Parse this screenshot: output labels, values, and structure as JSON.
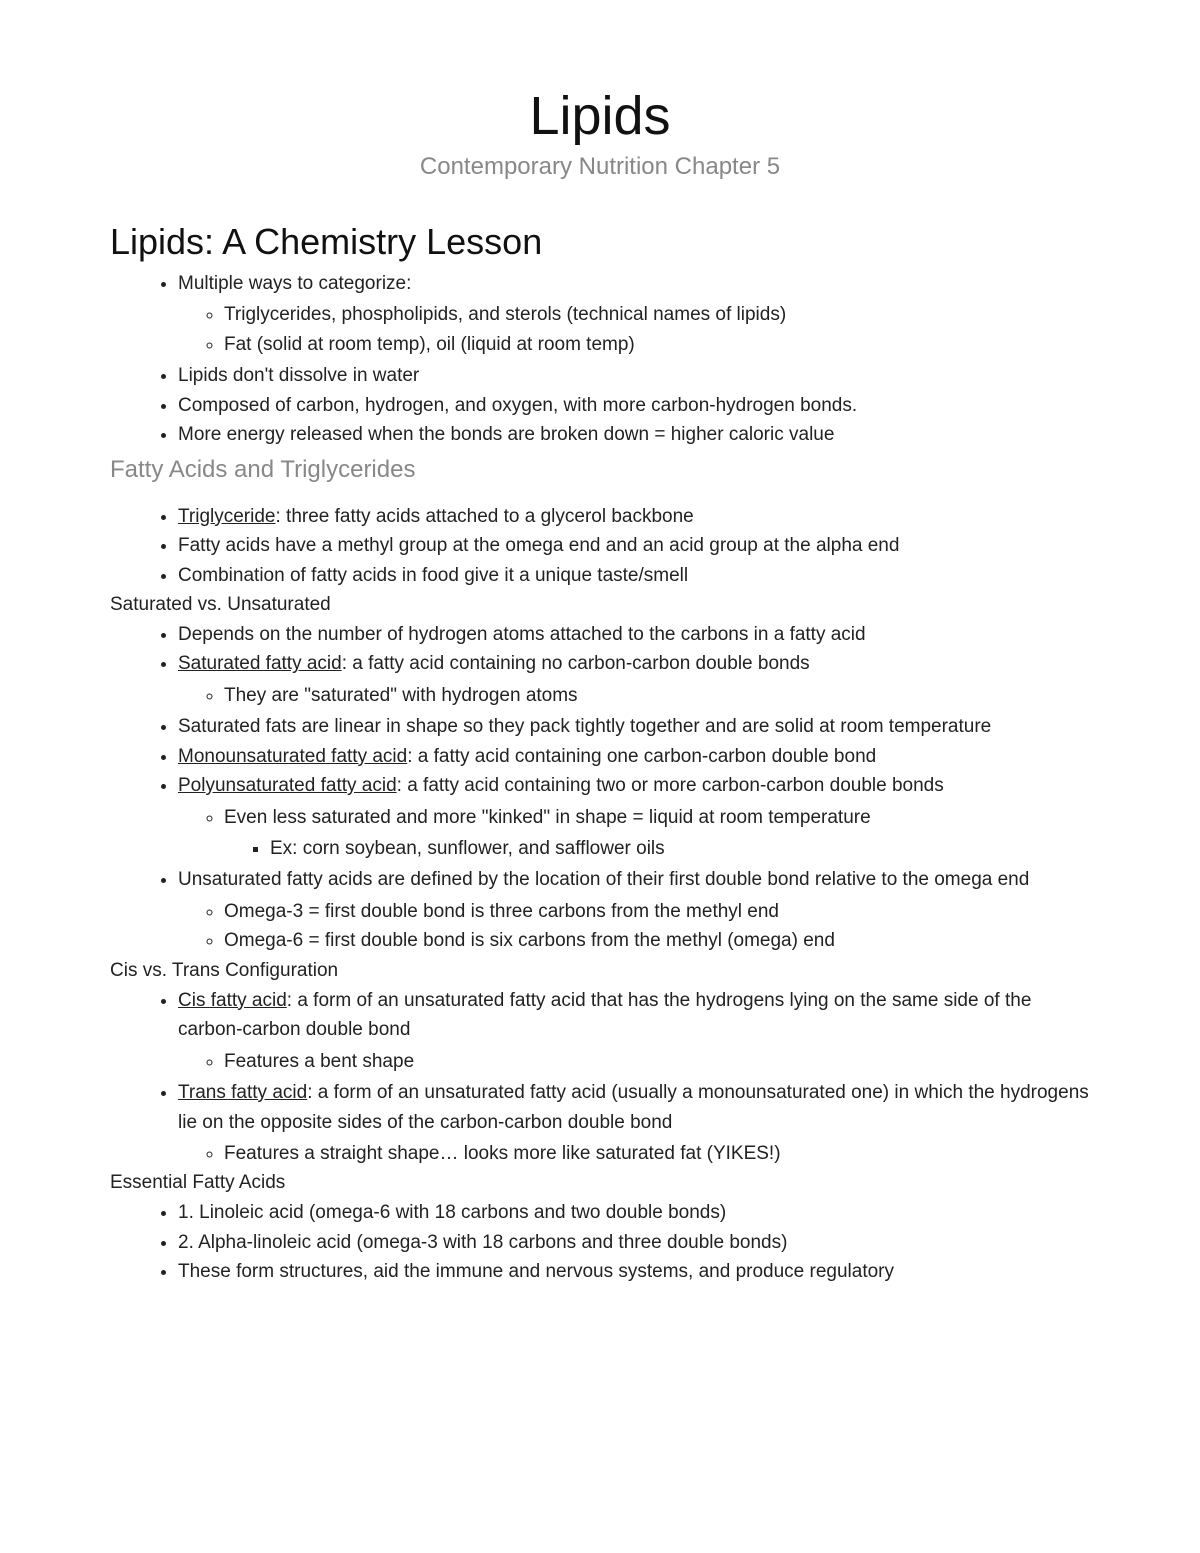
{
  "title": "Lipids",
  "subtitle": "Contemporary Nutrition Chapter 5",
  "section_heading": "Lipids: A Chemistry Lesson",
  "intro": {
    "i0": "Multiple ways to categorize:",
    "i0a": "Triglycerides, phospholipids, and sterols (technical names of lipids)",
    "i0b": "Fat (solid at room temp), oil (liquid at room temp)",
    "i1": "Lipids don't dissolve in water",
    "i2": "Composed of carbon, hydrogen, and oxygen, with more carbon-hydrogen bonds.",
    "i3": "More energy released when the bonds are broken down = higher caloric value"
  },
  "sub1_heading": "Fatty Acids and Triglycerides",
  "fat": {
    "f0_term": "Triglyceride",
    "f0_rest": ": three fatty acids attached to a glycerol backbone",
    "f1": "Fatty acids have a methyl group at the omega end and an acid group at the alpha end",
    "f2": "Combination of fatty acids in food give it a unique taste/smell"
  },
  "sub2_heading": "Saturated vs. Unsaturated",
  "sat": {
    "s0": "Depends on the number of hydrogen atoms attached to the carbons in a fatty acid",
    "s1_term": "Saturated fatty acid",
    "s1_rest": ": a fatty acid containing no carbon-carbon double bonds",
    "s1a": "They are \"saturated\" with hydrogen atoms",
    "s2": "Saturated fats are linear in shape so they pack tightly together and are solid at room temperature",
    "s3_term": "Monounsaturated fatty acid",
    "s3_rest": ": a fatty acid containing one carbon-carbon double bond",
    "s4_term": "Polyunsaturated fatty acid",
    "s4_rest": ": a fatty acid containing two or more carbon-carbon double bonds",
    "s4a": "Even less saturated and more \"kinked\" in shape = liquid at room temperature",
    "s4a1": "Ex: corn soybean, sunflower, and safflower oils",
    "s5": "Unsaturated fatty acids are defined by the location of their first double bond relative to the omega end",
    "s5a": "Omega-3 = first double bond is three carbons from the methyl end",
    "s5b": "Omega-6 = first double bond is six carbons from the methyl (omega) end"
  },
  "sub3_heading": "Cis vs. Trans Configuration",
  "cis": {
    "c0_term": "Cis fatty acid",
    "c0_rest": ": a form of an unsaturated fatty acid that has the hydrogens lying on the same side of the carbon-carbon double bond",
    "c0a": "Features a bent shape",
    "c1_term": "Trans fatty acid",
    "c1_rest": ": a form of an unsaturated fatty acid (usually a monounsaturated one) in which the hydrogens lie on the opposite sides of the carbon-carbon double bond",
    "c1a": "Features a straight shape… looks more like saturated fat (YIKES!)"
  },
  "sub4_heading": "Essential Fatty Acids",
  "ess": {
    "e0": "1. Linoleic acid (omega-6 with 18 carbons and two double bonds)",
    "e1": "2. Alpha-linoleic acid (omega-3 with 18 carbons and three double bonds)",
    "e2": "These form structures, aid the immune and nervous systems, and produce regulatory"
  }
}
